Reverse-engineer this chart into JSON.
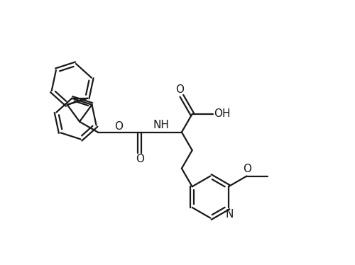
{
  "background_color": "#ffffff",
  "line_color": "#1a1a1a",
  "lw": 1.6,
  "figsize": [
    5.0,
    3.74
  ],
  "dpi": 100,
  "xlim": [
    0,
    10
  ],
  "ylim": [
    0,
    7.48
  ]
}
